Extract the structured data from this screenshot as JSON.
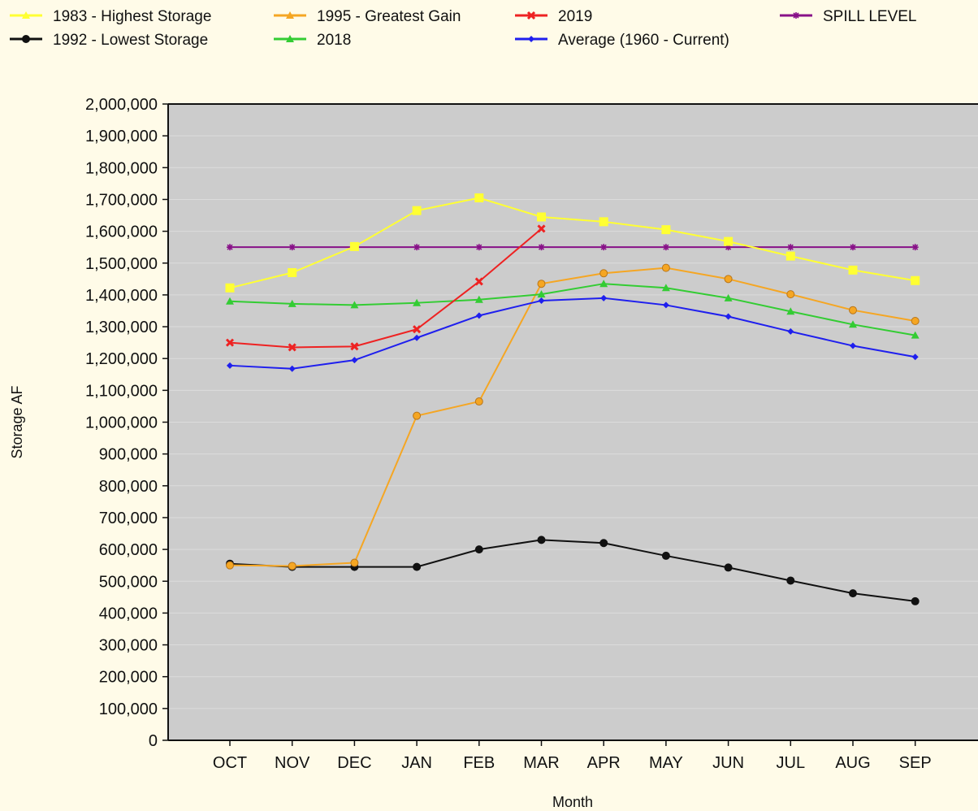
{
  "chart_data": {
    "type": "line",
    "xlabel": "Month",
    "ylabel": "Storage AF",
    "categories": [
      "OCT",
      "NOV",
      "DEC",
      "JAN",
      "FEB",
      "MAR",
      "APR",
      "MAY",
      "JUN",
      "JUL",
      "AUG",
      "SEP"
    ],
    "ylim": [
      0,
      2000000
    ],
    "yticks": [
      0,
      100000,
      200000,
      300000,
      400000,
      500000,
      600000,
      700000,
      800000,
      900000,
      1000000,
      1100000,
      1200000,
      1300000,
      1400000,
      1500000,
      1600000,
      1700000,
      1800000,
      1900000,
      2000000
    ],
    "ytick_labels": [
      "0",
      "100,000",
      "200,000",
      "300,000",
      "400,000",
      "500,000",
      "600,000",
      "700,000",
      "800,000",
      "900,000",
      "1,000,000",
      "1,100,000",
      "1,200,000",
      "1,300,000",
      "1,400,000",
      "1,500,000",
      "1,600,000",
      "1,700,000",
      "1,800,000",
      "1,900,000",
      "2,000,000"
    ],
    "grid": true,
    "legend_position": "top",
    "plot_background": "#cccccc",
    "series": [
      {
        "name": "1983 - Highest Storage",
        "color": "#ffff33",
        "marker": "square",
        "values": [
          1422000,
          1470000,
          1552000,
          1665000,
          1705000,
          1645000,
          1630000,
          1605000,
          1568000,
          1522000,
          1478000,
          1445000
        ]
      },
      {
        "name": "1995 - Greatest Gain",
        "color": "#f5a623",
        "marker": "circle",
        "values": [
          550000,
          548000,
          558000,
          1020000,
          1065000,
          1435000,
          1468000,
          1485000,
          1450000,
          1402000,
          1352000,
          1318000
        ]
      },
      {
        "name": "2019",
        "color": "#ee2222",
        "marker": "x",
        "values": [
          1250000,
          1235000,
          1238000,
          1292000,
          1442000,
          1608000,
          null,
          null,
          null,
          null,
          null,
          null
        ]
      },
      {
        "name": "SPILL LEVEL",
        "color": "#881188",
        "marker": "star",
        "values": [
          1550000,
          1550000,
          1550000,
          1550000,
          1550000,
          1550000,
          1550000,
          1550000,
          1550000,
          1550000,
          1550000,
          1550000
        ]
      },
      {
        "name": "1992 - Lowest Storage",
        "color": "#111111",
        "marker": "circle",
        "values": [
          555000,
          545000,
          545000,
          545000,
          600000,
          630000,
          620000,
          580000,
          543000,
          502000,
          462000,
          437000
        ]
      },
      {
        "name": "2018",
        "color": "#33cc33",
        "marker": "triangle",
        "values": [
          1380000,
          1372000,
          1368000,
          1375000,
          1385000,
          1402000,
          1435000,
          1422000,
          1390000,
          1348000,
          1307000,
          1273000
        ]
      },
      {
        "name": "Average (1960 - Current)",
        "color": "#1f1fee",
        "marker": "diamond",
        "values": [
          1178000,
          1168000,
          1195000,
          1265000,
          1335000,
          1382000,
          1390000,
          1368000,
          1332000,
          1285000,
          1240000,
          1205000
        ]
      }
    ]
  }
}
